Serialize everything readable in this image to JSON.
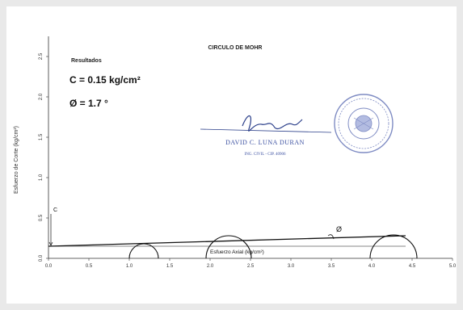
{
  "chart_data": {
    "type": "line",
    "title": "CIRCULO DE MOHR",
    "xlabel": "Esfuerzo Axial (kg/cm²)",
    "ylabel": "Esfuerzo de Corte (kg/cm²)",
    "xlim": [
      0,
      5
    ],
    "ylim": [
      0,
      2.75
    ],
    "x_ticks": [
      "0.0",
      "0.5",
      "1.0",
      "1.5",
      "2.0",
      "2.5",
      "3.0",
      "3.5",
      "4.0",
      "4.5",
      "5.0"
    ],
    "y_ticks": [
      "0.0",
      "0.5",
      "1.0",
      "1.5",
      "2.0",
      "2.5"
    ],
    "grid": false,
    "results": {
      "heading": "Resultados",
      "cohesion": "C = 0.15 kg/cm²",
      "friction_angle": "Ø = 1.7 °"
    },
    "circles": [
      {
        "center": 1.18,
        "radius": 0.18
      },
      {
        "center": 2.23,
        "radius": 0.28
      },
      {
        "center": 4.27,
        "radius": 0.29
      }
    ],
    "envelope": {
      "x": [
        0,
        4.42
      ],
      "y": [
        0.15,
        0.28
      ]
    },
    "annotations": {
      "cohesion_marker": "C",
      "angle_marker": "Ø"
    }
  },
  "signature": {
    "name": "DAVID C. LUNA DURAN",
    "credential": "ING. CIVIL - CIP. 40906"
  }
}
